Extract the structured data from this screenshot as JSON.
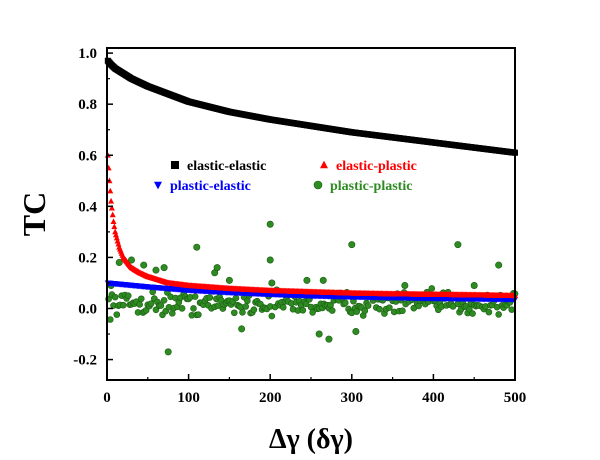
{
  "chart_data": {
    "type": "scatter",
    "xlabel": "Δγ (δγ)",
    "ylabel": "TC",
    "xlim": [
      0,
      500
    ],
    "ylim": [
      -0.28,
      1.02
    ],
    "xticks": [
      "0",
      "100",
      "200",
      "300",
      "400",
      "500"
    ],
    "yticks": [
      "-0.2",
      "0.0",
      "0.2",
      "0.4",
      "0.6",
      "0.8",
      "1.0"
    ],
    "legend_position": "center, two columns",
    "grid": false,
    "series": [
      {
        "name": "elastic-elastic",
        "color": "#000000",
        "marker": "square",
        "x": [
          1,
          5,
          10,
          20,
          30,
          50,
          75,
          100,
          125,
          150,
          175,
          200,
          250,
          300,
          350,
          400,
          450,
          500
        ],
        "y": [
          0.97,
          0.955,
          0.94,
          0.92,
          0.9,
          0.87,
          0.84,
          0.81,
          0.79,
          0.77,
          0.755,
          0.74,
          0.715,
          0.69,
          0.67,
          0.65,
          0.63,
          0.61
        ]
      },
      {
        "name": "elastic-plastic",
        "color": "#ff0000",
        "marker": "triangle-up",
        "x": [
          1,
          3,
          5,
          8,
          10,
          15,
          20,
          30,
          40,
          50,
          75,
          100,
          150,
          200,
          250,
          300,
          350,
          400,
          450,
          500
        ],
        "y": [
          0.6,
          0.5,
          0.42,
          0.34,
          0.3,
          0.24,
          0.2,
          0.16,
          0.14,
          0.125,
          0.1,
          0.09,
          0.078,
          0.07,
          0.065,
          0.06,
          0.057,
          0.055,
          0.053,
          0.05
        ]
      },
      {
        "name": "plastic-elastic",
        "color": "#0000ff",
        "marker": "triangle-down",
        "x": [
          1,
          50,
          100,
          150,
          200,
          250,
          300,
          350,
          400,
          450,
          500
        ],
        "y": [
          0.1,
          0.085,
          0.072,
          0.063,
          0.056,
          0.05,
          0.046,
          0.043,
          0.04,
          0.038,
          0.036
        ]
      },
      {
        "name": "plastic-plastic",
        "color": "#2e8b22",
        "marker": "circle",
        "scatter_center": 0.02,
        "scatter_spread": 0.045,
        "outliers_x": [
          5,
          15,
          30,
          45,
          60,
          70,
          75,
          110,
          132,
          135,
          150,
          165,
          200,
          200,
          202,
          245,
          260,
          265,
          272,
          300,
          305,
          365,
          430,
          450,
          480
        ],
        "outliers_y": [
          0.09,
          0.18,
          0.19,
          0.17,
          0.15,
          0.16,
          -0.17,
          0.24,
          0.14,
          0.16,
          0.11,
          -0.08,
          0.33,
          0.19,
          0.1,
          0.11,
          -0.1,
          0.11,
          -0.12,
          0.25,
          -0.09,
          0.09,
          0.25,
          0.09,
          0.17
        ]
      }
    ]
  }
}
